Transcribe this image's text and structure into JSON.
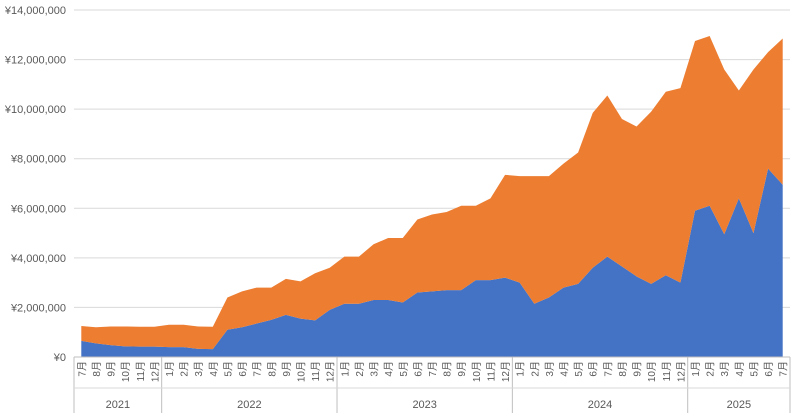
{
  "chart_data": {
    "type": "area",
    "stacked": true,
    "grid": true,
    "legend": "none",
    "ylim": [
      0,
      14000000
    ],
    "y_ticks": [
      0,
      2000000,
      4000000,
      6000000,
      8000000,
      10000000,
      12000000,
      14000000
    ],
    "y_tick_labels": [
      "¥0",
      "¥2,000,000",
      "¥4,000,000",
      "¥6,000,000",
      "¥8,000,000",
      "¥10,000,000",
      "¥12,000,000",
      "¥14,000,000"
    ],
    "categories": [
      "7月",
      "8月",
      "9月",
      "10月",
      "11月",
      "12月",
      "1月",
      "2月",
      "3月",
      "4月",
      "5月",
      "6月",
      "7月",
      "8月",
      "9月",
      "10月",
      "11月",
      "12月",
      "1月",
      "2月",
      "3月",
      "4月",
      "5月",
      "6月",
      "7月",
      "8月",
      "9月",
      "10月",
      "11月",
      "12月",
      "1月",
      "2月",
      "3月",
      "4月",
      "5月",
      "6月",
      "7月",
      "8月",
      "9月",
      "10月",
      "11月",
      "12月",
      "1月",
      "2月",
      "3月",
      "4月",
      "5月",
      "6月",
      "7月"
    ],
    "year_groups": [
      {
        "label": "2021",
        "start": 0,
        "end": 5
      },
      {
        "label": "2022",
        "start": 6,
        "end": 17
      },
      {
        "label": "2023",
        "start": 18,
        "end": 29
      },
      {
        "label": "2024",
        "start": 30,
        "end": 41
      },
      {
        "label": "2025",
        "start": 42,
        "end": 48
      }
    ],
    "series": [
      {
        "color": "#4472c4",
        "values": [
          650000,
          550000,
          480000,
          430000,
          420000,
          420000,
          400000,
          400000,
          330000,
          320000,
          1100000,
          1200000,
          1350000,
          1500000,
          1700000,
          1550000,
          1480000,
          1900000,
          2150000,
          2150000,
          2300000,
          2300000,
          2200000,
          2600000,
          2650000,
          2700000,
          2700000,
          3100000,
          3100000,
          3200000,
          3000000,
          2150000,
          2400000,
          2800000,
          2950000,
          3600000,
          4050000,
          3650000,
          3250000,
          2950000,
          3300000,
          3000000,
          5900000,
          6100000,
          4950000,
          6400000,
          5000000,
          7600000,
          6950000
        ]
      },
      {
        "color": "#ed7d31",
        "values": [
          600000,
          650000,
          750000,
          800000,
          800000,
          800000,
          900000,
          900000,
          900000,
          900000,
          1300000,
          1450000,
          1450000,
          1300000,
          1450000,
          1500000,
          1900000,
          1700000,
          1900000,
          1900000,
          2250000,
          2500000,
          2600000,
          2950000,
          3100000,
          3150000,
          3400000,
          3000000,
          3300000,
          4150000,
          4300000,
          5150000,
          4900000,
          5000000,
          5300000,
          6250000,
          6500000,
          5950000,
          6050000,
          6950000,
          7400000,
          7850000,
          6850000,
          6850000,
          6650000,
          4350000,
          6600000,
          4700000,
          5900000
        ]
      }
    ]
  }
}
